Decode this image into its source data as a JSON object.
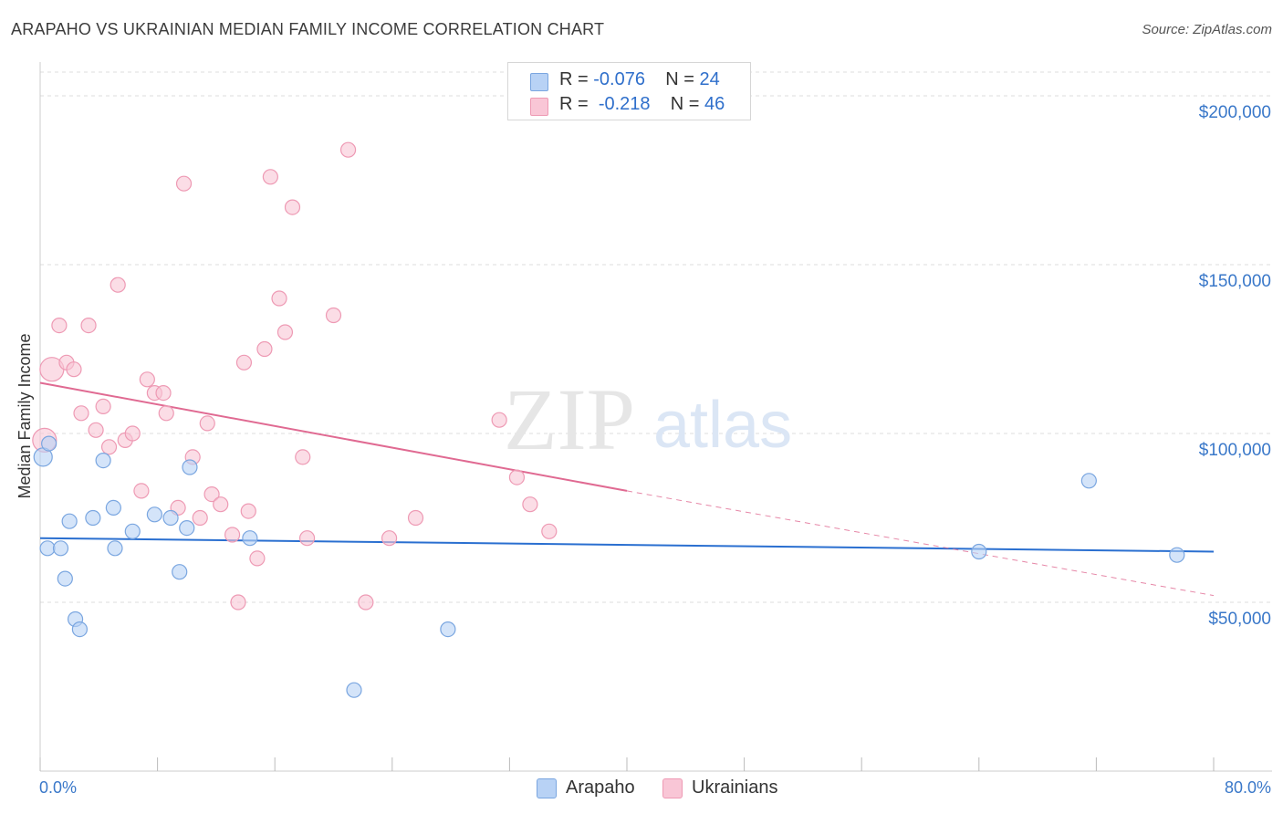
{
  "title": "ARAPAHO VS UKRAINIAN MEDIAN FAMILY INCOME CORRELATION CHART",
  "source": "Source: ZipAtlas.com",
  "watermark": {
    "zip": "ZIP",
    "atlas": "atlas"
  },
  "legend": {
    "rows": [
      {
        "r_label": "R = ",
        "r_value": "-0.076",
        "n_label": "N = ",
        "n_value": "24"
      },
      {
        "r_label": "R = ",
        "r_value": "-0.218",
        "n_label": "N = ",
        "n_value": "46"
      }
    ]
  },
  "bottom_legend": {
    "arapaho": "Arapaho",
    "ukrainians": "Ukrainians"
  },
  "colors": {
    "arapaho_fill": "#b8d2f5",
    "arapaho_stroke": "#7aa6e0",
    "arapaho_line": "#2a6fd0",
    "ukrainian_fill": "#f9c6d6",
    "ukrainian_stroke": "#ee9ab4",
    "ukrainian_line": "#e06a92",
    "grid": "#dddddd",
    "tick_text": "#3a78c9"
  },
  "chart_data": {
    "type": "scatter",
    "title": "ARAPAHO VS UKRAINIAN MEDIAN FAMILY INCOME CORRELATION CHART",
    "xlabel": "",
    "ylabel": "Median Family Income",
    "xlim": [
      0,
      80
    ],
    "ylim": [
      0,
      210000
    ],
    "x_tick_labels": {
      "left": "0.0%",
      "right": "80.0%"
    },
    "y_ticks": [
      {
        "value": 50000,
        "label": "$50,000"
      },
      {
        "value": 100000,
        "label": "$100,000"
      },
      {
        "value": 150000,
        "label": "$150,000"
      },
      {
        "value": 200000,
        "label": "$200,000"
      }
    ],
    "grid": true,
    "legend_position": "top-center",
    "series": [
      {
        "name": "Arapaho",
        "r": -0.076,
        "n": 24,
        "trend": {
          "x": [
            0,
            80
          ],
          "y": [
            69000,
            65000
          ]
        },
        "points": [
          {
            "x": 0.2,
            "y": 93000
          },
          {
            "x": 0.6,
            "y": 97000
          },
          {
            "x": 0.5,
            "y": 66000
          },
          {
            "x": 1.4,
            "y": 66000
          },
          {
            "x": 1.7,
            "y": 57000
          },
          {
            "x": 2.0,
            "y": 74000
          },
          {
            "x": 2.4,
            "y": 45000
          },
          {
            "x": 2.7,
            "y": 42000
          },
          {
            "x": 3.6,
            "y": 75000
          },
          {
            "x": 4.3,
            "y": 92000
          },
          {
            "x": 5.0,
            "y": 78000
          },
          {
            "x": 5.1,
            "y": 66000
          },
          {
            "x": 6.3,
            "y": 71000
          },
          {
            "x": 7.8,
            "y": 76000
          },
          {
            "x": 8.9,
            "y": 75000
          },
          {
            "x": 9.5,
            "y": 59000
          },
          {
            "x": 10.0,
            "y": 72000
          },
          {
            "x": 10.2,
            "y": 90000
          },
          {
            "x": 14.3,
            "y": 69000
          },
          {
            "x": 21.4,
            "y": 24000
          },
          {
            "x": 27.8,
            "y": 42000
          },
          {
            "x": 64.0,
            "y": 65000
          },
          {
            "x": 71.5,
            "y": 86000
          },
          {
            "x": 77.5,
            "y": 64000
          }
        ]
      },
      {
        "name": "Ukrainians",
        "r": -0.218,
        "n": 46,
        "trend": {
          "x": [
            0,
            40
          ],
          "y": [
            115000,
            83000
          ],
          "dashed_to": {
            "x": 80,
            "y": 52000
          }
        },
        "points": [
          {
            "x": 0.3,
            "y": 98000
          },
          {
            "x": 0.8,
            "y": 119000
          },
          {
            "x": 1.3,
            "y": 132000
          },
          {
            "x": 1.8,
            "y": 121000
          },
          {
            "x": 2.3,
            "y": 119000
          },
          {
            "x": 2.8,
            "y": 106000
          },
          {
            "x": 3.3,
            "y": 132000
          },
          {
            "x": 3.8,
            "y": 101000
          },
          {
            "x": 4.3,
            "y": 108000
          },
          {
            "x": 4.7,
            "y": 96000
          },
          {
            "x": 5.3,
            "y": 144000
          },
          {
            "x": 5.8,
            "y": 98000
          },
          {
            "x": 6.3,
            "y": 100000
          },
          {
            "x": 6.9,
            "y": 83000
          },
          {
            "x": 7.3,
            "y": 116000
          },
          {
            "x": 7.8,
            "y": 112000
          },
          {
            "x": 8.4,
            "y": 112000
          },
          {
            "x": 8.6,
            "y": 106000
          },
          {
            "x": 9.4,
            "y": 78000
          },
          {
            "x": 9.8,
            "y": 174000
          },
          {
            "x": 10.4,
            "y": 93000
          },
          {
            "x": 10.9,
            "y": 75000
          },
          {
            "x": 11.4,
            "y": 103000
          },
          {
            "x": 11.7,
            "y": 82000
          },
          {
            "x": 12.3,
            "y": 79000
          },
          {
            "x": 13.1,
            "y": 70000
          },
          {
            "x": 13.5,
            "y": 50000
          },
          {
            "x": 13.9,
            "y": 121000
          },
          {
            "x": 14.2,
            "y": 77000
          },
          {
            "x": 14.8,
            "y": 63000
          },
          {
            "x": 15.3,
            "y": 125000
          },
          {
            "x": 15.7,
            "y": 176000
          },
          {
            "x": 16.3,
            "y": 140000
          },
          {
            "x": 16.7,
            "y": 130000
          },
          {
            "x": 17.2,
            "y": 167000
          },
          {
            "x": 17.9,
            "y": 93000
          },
          {
            "x": 18.2,
            "y": 69000
          },
          {
            "x": 20.0,
            "y": 135000
          },
          {
            "x": 21.0,
            "y": 184000
          },
          {
            "x": 22.2,
            "y": 50000
          },
          {
            "x": 23.8,
            "y": 69000
          },
          {
            "x": 25.6,
            "y": 75000
          },
          {
            "x": 31.3,
            "y": 104000
          },
          {
            "x": 32.5,
            "y": 87000
          },
          {
            "x": 33.4,
            "y": 79000
          },
          {
            "x": 34.7,
            "y": 71000
          }
        ]
      }
    ]
  }
}
